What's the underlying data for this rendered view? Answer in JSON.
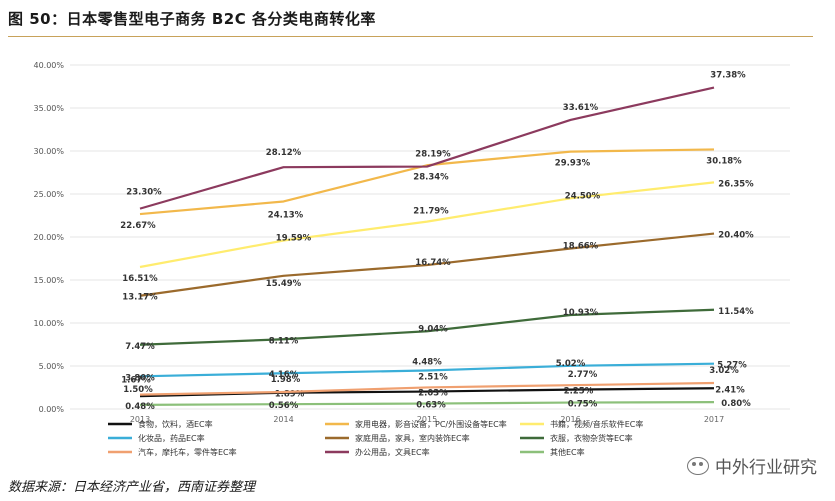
{
  "header": {
    "title": "图 50：日本零售型电子商务 B2C 各分类电商转化率"
  },
  "footer": {
    "source": "数据来源：日本经济产业省，西南证券整理",
    "watermark": "中外行业研究"
  },
  "chart_data": {
    "type": "line",
    "title": "图 50：日本零售型电子商务 B2C 各分类电商转化率",
    "xlabel": "",
    "ylabel": "",
    "ylim": [
      0,
      40
    ],
    "ytick_labels": [
      "0.00%",
      "5.00%",
      "10.00%",
      "15.00%",
      "20.00%",
      "25.00%",
      "30.00%",
      "35.00%",
      "40.00%"
    ],
    "grid": true,
    "legend": "bottom",
    "categories": [
      "2013",
      "2014",
      "2015",
      "2016",
      "2017"
    ],
    "series": [
      {
        "name": "食物，饮料，酒EC率",
        "color": "#111111",
        "values": [
          1.5,
          1.89,
          2.03,
          2.25,
          2.41
        ],
        "labels": [
          "1.50%",
          "1.89%",
          "2.03%",
          "2.25%",
          "2.41%"
        ]
      },
      {
        "name": "家用电器，影音设备，PC/外围设备等EC率",
        "color": "#f2b84b",
        "values": [
          22.67,
          24.13,
          28.34,
          29.93,
          30.18
        ],
        "labels": [
          "22.67%",
          "24.13%",
          "28.34%",
          "29.93%",
          "30.18%"
        ]
      },
      {
        "name": "书籍，视频/音乐软件EC率",
        "color": "#ffec6e",
        "values": [
          16.51,
          19.59,
          21.79,
          24.5,
          26.35
        ],
        "labels": [
          "16.51%",
          "19.59%",
          "21.79%",
          "24.50%",
          "26.35%"
        ]
      },
      {
        "name": "化妆品，药品EC率",
        "color": "#3aaed8",
        "values": [
          3.8,
          4.16,
          4.48,
          5.02,
          5.27
        ],
        "labels": [
          "3.80%",
          "4.16%",
          "4.48%",
          "5.02%",
          "5.27%"
        ]
      },
      {
        "name": "家庭用品，家具，室内装饰EC率",
        "color": "#9b6a2c",
        "values": [
          13.17,
          15.49,
          16.74,
          18.66,
          20.4
        ],
        "labels": [
          "13.17%",
          "15.49%",
          "16.74%",
          "18.66%",
          "20.40%"
        ]
      },
      {
        "name": "衣服，衣物杂货等EC率",
        "color": "#3f6b3a",
        "values": [
          7.47,
          8.11,
          9.04,
          10.93,
          11.54
        ],
        "labels": [
          "7.47%",
          "8.11%",
          "9.04%",
          "10.93%",
          "11.54%"
        ]
      },
      {
        "name": "汽车，摩托车，零件等EC率",
        "color": "#f0a070",
        "values": [
          1.67,
          1.98,
          2.51,
          2.77,
          3.02
        ],
        "labels": [
          "1.67%",
          "1.98%",
          "2.51%",
          "2.77%",
          "3.02%"
        ]
      },
      {
        "name": "办公用品，文具EC率",
        "color": "#8c3a5e",
        "values": [
          23.3,
          28.12,
          28.19,
          33.61,
          37.38
        ],
        "labels": [
          "23.30%",
          "28.12%",
          "28.19%",
          "33.61%",
          "37.38%"
        ]
      },
      {
        "name": "其他EC率",
        "color": "#8cc07a",
        "values": [
          0.48,
          0.56,
          0.63,
          0.75,
          0.8
        ],
        "labels": [
          "0.48%",
          "0.56%",
          "0.63%",
          "0.75%",
          "0.80%"
        ]
      }
    ]
  }
}
